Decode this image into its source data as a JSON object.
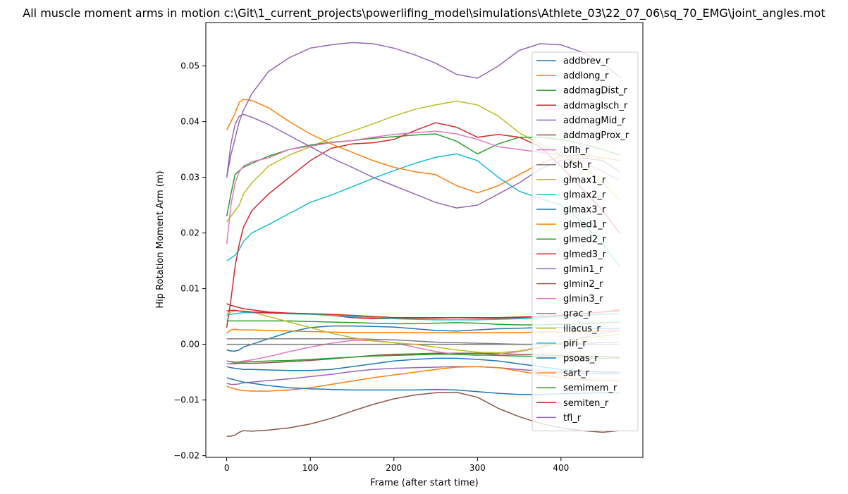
{
  "chart_data": {
    "type": "line",
    "title": "All muscle moment arms in motion c:\\Git\\1_current_projects\\powerlifing_model\\simulations\\Athlete_03\\22_07_06\\sq_70_EMG\\joint_angles.mot",
    "xlabel": "Frame (after start time)",
    "ylabel": "Hip Rotation Moment Arm (m)",
    "xlim": [
      -25,
      498
    ],
    "ylim": [
      -0.0203,
      0.0578
    ],
    "xticks": [
      0,
      100,
      200,
      300,
      400
    ],
    "yticks": [
      -0.02,
      -0.01,
      0.0,
      0.01,
      0.02,
      0.03,
      0.04,
      0.05
    ],
    "ytick_labels": [
      "−0.02",
      "−0.01",
      "0.00",
      "0.01",
      "0.02",
      "0.03",
      "0.04",
      "0.05"
    ],
    "grid": false,
    "legend_position": "upper right",
    "x": [
      0,
      5,
      10,
      15,
      20,
      30,
      50,
      75,
      100,
      125,
      150,
      175,
      200,
      225,
      250,
      275,
      300,
      325,
      350,
      375,
      400,
      425,
      450,
      470
    ],
    "series": [
      {
        "name": "addbrev_r",
        "color": "#1f77b4",
        "values": [
          -0.001,
          -0.0012,
          -0.0012,
          -0.001,
          -0.0005,
          0.0,
          0.001,
          0.0022,
          0.003,
          0.0033,
          0.0033,
          0.0032,
          0.0031,
          0.0028,
          0.0025,
          0.0024,
          0.0026,
          0.0028,
          0.0029,
          0.003,
          0.003,
          0.0029,
          0.0028,
          0.0028
        ]
      },
      {
        "name": "addlong_r",
        "color": "#ff7f0e",
        "values": [
          0.002,
          0.0026,
          0.0027,
          0.0026,
          0.0026,
          0.0026,
          0.0025,
          0.0024,
          0.0023,
          0.0022,
          0.0021,
          0.0021,
          0.0021,
          0.0021,
          0.0021,
          0.0021,
          0.0021,
          0.0021,
          0.0021,
          0.0022,
          0.0022,
          0.0023,
          0.0024,
          0.0025
        ]
      },
      {
        "name": "addmagDist_r",
        "color": "#2ca02c",
        "values": [
          0.0042,
          0.0042,
          0.0042,
          0.0042,
          0.0042,
          0.0042,
          0.0042,
          0.0042,
          0.0041,
          0.004,
          0.0039,
          0.0038,
          0.0037,
          0.0037,
          0.0038,
          0.0039,
          0.0038,
          0.0036,
          0.0035,
          0.0035,
          0.0036,
          0.0037,
          0.0039,
          0.004
        ]
      },
      {
        "name": "addmagIsch_r",
        "color": "#d62728",
        "values": [
          0.0073,
          0.007,
          0.0068,
          0.0066,
          0.0064,
          0.0062,
          0.0058,
          0.0056,
          0.0055,
          0.0052,
          0.0048,
          0.0046,
          0.0046,
          0.0047,
          0.0047,
          0.0048,
          0.0047,
          0.0047,
          0.0048,
          0.005,
          0.0052,
          0.0055,
          0.0058,
          0.0062
        ]
      },
      {
        "name": "addmagMid_r",
        "color": "#9467bd",
        "values": [
          -0.007,
          -0.0072,
          -0.0072,
          -0.0071,
          -0.0069,
          -0.0068,
          -0.0065,
          -0.0062,
          -0.0058,
          -0.0054,
          -0.0049,
          -0.0045,
          -0.0043,
          -0.0042,
          -0.0041,
          -0.004,
          -0.004,
          -0.0042,
          -0.0045,
          -0.0048,
          -0.005,
          -0.0052,
          -0.0053,
          -0.0053
        ]
      },
      {
        "name": "addmagProx_r",
        "color": "#8c564b",
        "values": [
          -0.0035,
          -0.0035,
          -0.0035,
          -0.0034,
          -0.0034,
          -0.0034,
          -0.0033,
          -0.0031,
          -0.0029,
          -0.0026,
          -0.0023,
          -0.002,
          -0.0018,
          -0.0017,
          -0.0016,
          -0.0016,
          -0.0016,
          -0.0017,
          -0.0018,
          -0.0019,
          -0.002,
          -0.0021,
          -0.0022,
          -0.0023
        ]
      },
      {
        "name": "bflh_r",
        "color": "#e377c2",
        "values": [
          -0.0035,
          -0.0034,
          -0.0033,
          -0.0032,
          -0.003,
          -0.0028,
          -0.0022,
          -0.0013,
          -0.0005,
          0.0002,
          0.0007,
          0.0007,
          0.0003,
          -0.0005,
          -0.0013,
          -0.0018,
          -0.002,
          -0.0018,
          -0.0013,
          -0.0006,
          0.0003,
          0.0012,
          0.002,
          0.0025
        ]
      },
      {
        "name": "bfsh_r",
        "color": "#7f7f7f",
        "values": [
          0.001,
          0.001,
          0.001,
          0.001,
          0.001,
          0.001,
          0.001,
          0.001,
          0.001,
          0.001,
          0.001,
          0.0009,
          0.0008,
          0.0006,
          0.0004,
          0.0003,
          0.0002,
          0.0001,
          0.0,
          0.0,
          0.0001,
          0.0002,
          0.0003,
          0.0004
        ]
      },
      {
        "name": "glmax1_r",
        "color": "#bcbd22",
        "values": [
          0.022,
          0.023,
          0.024,
          0.025,
          0.027,
          0.029,
          0.032,
          0.034,
          0.0355,
          0.037,
          0.0383,
          0.0396,
          0.041,
          0.0422,
          0.043,
          0.0437,
          0.043,
          0.041,
          0.038,
          0.036,
          0.034,
          0.032,
          0.029,
          0.026
        ]
      },
      {
        "name": "glmax2_r",
        "color": "#17becf",
        "values": [
          0.015,
          0.0155,
          0.016,
          0.017,
          0.0185,
          0.02,
          0.0215,
          0.0235,
          0.0255,
          0.0268,
          0.0283,
          0.0298,
          0.0312,
          0.0325,
          0.0336,
          0.0342,
          0.033,
          0.03,
          0.0275,
          0.0262,
          0.025,
          0.022,
          0.018,
          0.014
        ]
      },
      {
        "name": "glmax3_r",
        "color": "#1f77b4",
        "values": [
          -0.004,
          -0.0042,
          -0.0043,
          -0.0044,
          -0.0045,
          -0.0045,
          -0.0046,
          -0.0047,
          -0.0047,
          -0.0045,
          -0.004,
          -0.0035,
          -0.003,
          -0.0027,
          -0.0025,
          -0.0025,
          -0.0027,
          -0.003,
          -0.0035,
          -0.004,
          -0.0045,
          -0.0048,
          -0.005,
          -0.005
        ]
      },
      {
        "name": "glmed1_r",
        "color": "#ff7f0e",
        "values": [
          -0.0075,
          -0.0078,
          -0.008,
          -0.0082,
          -0.0083,
          -0.0084,
          -0.0084,
          -0.0082,
          -0.0078,
          -0.0072,
          -0.0066,
          -0.006,
          -0.0055,
          -0.005,
          -0.0045,
          -0.0041,
          -0.004,
          -0.0042,
          -0.0048,
          -0.0055,
          -0.006,
          -0.0063,
          -0.0065,
          -0.0066
        ]
      },
      {
        "name": "glmed2_r",
        "color": "#2ca02c",
        "values": [
          0.023,
          0.027,
          0.0305,
          0.0312,
          0.0318,
          0.0325,
          0.0338,
          0.035,
          0.0358,
          0.0363,
          0.0366,
          0.037,
          0.0373,
          0.0376,
          0.0378,
          0.0365,
          0.0342,
          0.036,
          0.0372,
          0.0372,
          0.0368,
          0.036,
          0.035,
          0.034
        ]
      },
      {
        "name": "glmed3_r",
        "color": "#d62728",
        "values": [
          0.003,
          0.008,
          0.014,
          0.018,
          0.021,
          0.024,
          0.027,
          0.03,
          0.033,
          0.0352,
          0.036,
          0.0362,
          0.0368,
          0.0384,
          0.0398,
          0.039,
          0.0372,
          0.0377,
          0.0372,
          0.0355,
          0.032,
          0.028,
          0.024,
          0.02
        ]
      },
      {
        "name": "glmin1_r",
        "color": "#9467bd",
        "values": [
          0.03,
          0.036,
          0.0395,
          0.041,
          0.0413,
          0.0408,
          0.0395,
          0.0375,
          0.0355,
          0.0335,
          0.0318,
          0.03,
          0.0285,
          0.027,
          0.0255,
          0.0245,
          0.025,
          0.027,
          0.029,
          0.0315,
          0.033,
          0.0335,
          0.033,
          0.031
        ]
      },
      {
        "name": "glmin2_r",
        "color": "#8c564b",
        "values": [
          -0.0165,
          -0.0165,
          -0.0163,
          -0.0158,
          -0.0155,
          -0.0156,
          -0.0154,
          -0.015,
          -0.0143,
          -0.0133,
          -0.012,
          -0.0108,
          -0.0098,
          -0.0091,
          -0.0087,
          -0.0086,
          -0.0095,
          -0.0115,
          -0.013,
          -0.0142,
          -0.015,
          -0.0155,
          -0.0158,
          -0.0155
        ]
      },
      {
        "name": "glmin3_r",
        "color": "#e377c2",
        "values": [
          0.018,
          0.025,
          0.029,
          0.031,
          0.032,
          0.0328,
          0.0335,
          0.035,
          0.0356,
          0.0362,
          0.0366,
          0.0372,
          0.0377,
          0.038,
          0.0383,
          0.0378,
          0.0368,
          0.0355,
          0.035,
          0.0345,
          0.034,
          0.033,
          0.031,
          0.0295
        ]
      },
      {
        "name": "grac_r",
        "color": "#7f7f7f",
        "values": [
          0.0,
          0.0,
          0.0,
          0.0,
          0.0,
          0.0,
          0.0,
          0.0,
          0.0,
          0.0,
          0.0,
          0.0,
          0.0,
          0.0,
          0.0,
          0.0,
          0.0,
          0.0,
          0.0,
          0.0,
          0.0,
          0.0,
          0.0,
          0.0
        ]
      },
      {
        "name": "iliacus_r",
        "color": "#bcbd22",
        "values": [
          0.0055,
          0.0058,
          0.006,
          0.006,
          0.006,
          0.0058,
          0.005,
          0.004,
          0.003,
          0.002,
          0.0012,
          0.0006,
          0.0003,
          0.0,
          -0.0005,
          -0.001,
          -0.0014,
          -0.0015,
          -0.0012,
          -0.0005,
          0.0003,
          0.001,
          0.0015,
          0.0018
        ]
      },
      {
        "name": "piri_r",
        "color": "#17becf",
        "values": [
          0.0052,
          0.0054,
          0.0055,
          0.0056,
          0.0057,
          0.0057,
          0.0056,
          0.0055,
          0.0054,
          0.0052,
          0.005,
          0.0048,
          0.0046,
          0.0045,
          0.0044,
          0.0044,
          0.0044,
          0.0045,
          0.0046,
          0.0048,
          0.005,
          0.0052,
          0.0054,
          0.0055
        ]
      },
      {
        "name": "psoas_r",
        "color": "#1f77b4",
        "values": [
          -0.006,
          -0.0062,
          -0.0064,
          -0.0066,
          -0.0068,
          -0.007,
          -0.0074,
          -0.0078,
          -0.008,
          -0.0081,
          -0.0082,
          -0.0082,
          -0.0082,
          -0.0082,
          -0.0081,
          -0.0082,
          -0.0085,
          -0.0088,
          -0.009,
          -0.009,
          -0.0089,
          -0.0088,
          -0.0087,
          -0.0087
        ]
      },
      {
        "name": "sart_r",
        "color": "#ff7f0e",
        "values": [
          0.0385,
          0.04,
          0.0415,
          0.0435,
          0.044,
          0.0438,
          0.0425,
          0.04,
          0.0378,
          0.036,
          0.0345,
          0.033,
          0.0318,
          0.031,
          0.0305,
          0.0285,
          0.0272,
          0.0285,
          0.0305,
          0.0325,
          0.0338,
          0.034,
          0.0335,
          0.033
        ]
      },
      {
        "name": "semimem_r",
        "color": "#2ca02c",
        "values": [
          -0.003,
          -0.0031,
          -0.0032,
          -0.0032,
          -0.0032,
          -0.0031,
          -0.003,
          -0.0029,
          -0.0027,
          -0.0025,
          -0.0023,
          -0.0021,
          -0.002,
          -0.0019,
          -0.0018,
          -0.0018,
          -0.0019,
          -0.002,
          -0.0021,
          -0.0022,
          -0.0023,
          -0.0024,
          -0.0025,
          -0.0025
        ]
      },
      {
        "name": "semiten_r",
        "color": "#d62728",
        "values": [
          0.006,
          0.0061,
          0.0061,
          0.006,
          0.0059,
          0.0058,
          0.0057,
          0.0056,
          0.0055,
          0.0054,
          0.0052,
          0.005,
          0.0048,
          0.0048,
          0.0048,
          0.0048,
          0.0048,
          0.0048,
          0.0049,
          0.005,
          0.0052,
          0.0055,
          0.0058,
          0.006
        ]
      },
      {
        "name": "tfl_r",
        "color": "#9467bd",
        "values": [
          0.03,
          0.034,
          0.037,
          0.04,
          0.042,
          0.045,
          0.049,
          0.0515,
          0.0532,
          0.0538,
          0.0542,
          0.054,
          0.0532,
          0.052,
          0.0505,
          0.0485,
          0.0478,
          0.05,
          0.0528,
          0.054,
          0.0538,
          0.0525,
          0.0505,
          0.048
        ]
      }
    ]
  }
}
